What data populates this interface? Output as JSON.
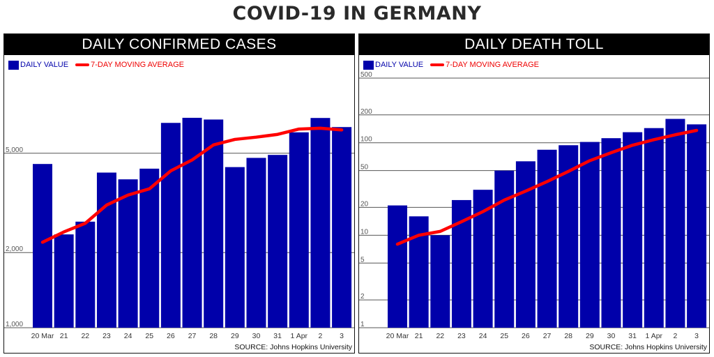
{
  "title": "COVID-19 IN GERMANY",
  "source": "SOURCE: Johns Hopkins University",
  "colors": {
    "bar": "#0000aa",
    "line": "#ff0000",
    "grid": "#555555"
  },
  "chart_data": [
    {
      "type": "bar",
      "title": "DAILY CONFIRMED CASES",
      "scale": "log",
      "ylim": [
        1000,
        10000
      ],
      "y_ticks": [
        1000,
        2000,
        5000
      ],
      "y_tick_labels": [
        "1,000",
        "2,000",
        "5,000"
      ],
      "legend": [
        "DAILY VALUE",
        "7-DAY MOVING AVERAGE"
      ],
      "categories": [
        "20 Mar",
        "21",
        "22",
        "23",
        "24",
        "25",
        "26",
        "27",
        "28",
        "29",
        "30",
        "31",
        "1 Apr",
        "2",
        "3"
      ],
      "series": [
        {
          "name": "DAILY VALUE",
          "type": "bar",
          "values": [
            4528,
            2365,
            2660,
            4183,
            3930,
            4337,
            6615,
            6933,
            6824,
            4400,
            4790,
            4923,
            6064,
            6922,
            6365
          ]
        },
        {
          "name": "7-DAY MOVING AVERAGE",
          "type": "line",
          "values": [
            2200,
            2420,
            2620,
            3100,
            3400,
            3600,
            4250,
            4700,
            5400,
            5680,
            5800,
            5950,
            6250,
            6300,
            6200
          ]
        }
      ]
    },
    {
      "type": "bar",
      "title": "DAILY DEATH TOLL",
      "scale": "log",
      "ylim": [
        1,
        500
      ],
      "y_ticks": [
        1,
        2,
        5,
        10,
        20,
        50,
        100,
        200,
        500
      ],
      "y_tick_labels": [
        "1",
        "2",
        "5",
        "10",
        "20",
        "50",
        "100",
        "200",
        "500"
      ],
      "legend": [
        "DAILY VALUE",
        "7-DAY MOVING AVERAGE"
      ],
      "categories": [
        "20 Mar",
        "21",
        "22",
        "23",
        "24",
        "25",
        "26",
        "27",
        "28",
        "29",
        "30",
        "31",
        "1 Apr",
        "2",
        "3"
      ],
      "series": [
        {
          "name": "DAILY VALUE",
          "type": "bar",
          "values": [
            21,
            16,
            10,
            24,
            31,
            50,
            63,
            84,
            94,
            102,
            112,
            130,
            144,
            181,
            158
          ]
        },
        {
          "name": "7-DAY MOVING AVERAGE",
          "type": "line",
          "values": [
            8,
            10,
            11,
            14,
            18,
            24,
            30,
            38,
            49,
            64,
            78,
            94,
            108,
            122,
            136
          ]
        }
      ]
    }
  ]
}
